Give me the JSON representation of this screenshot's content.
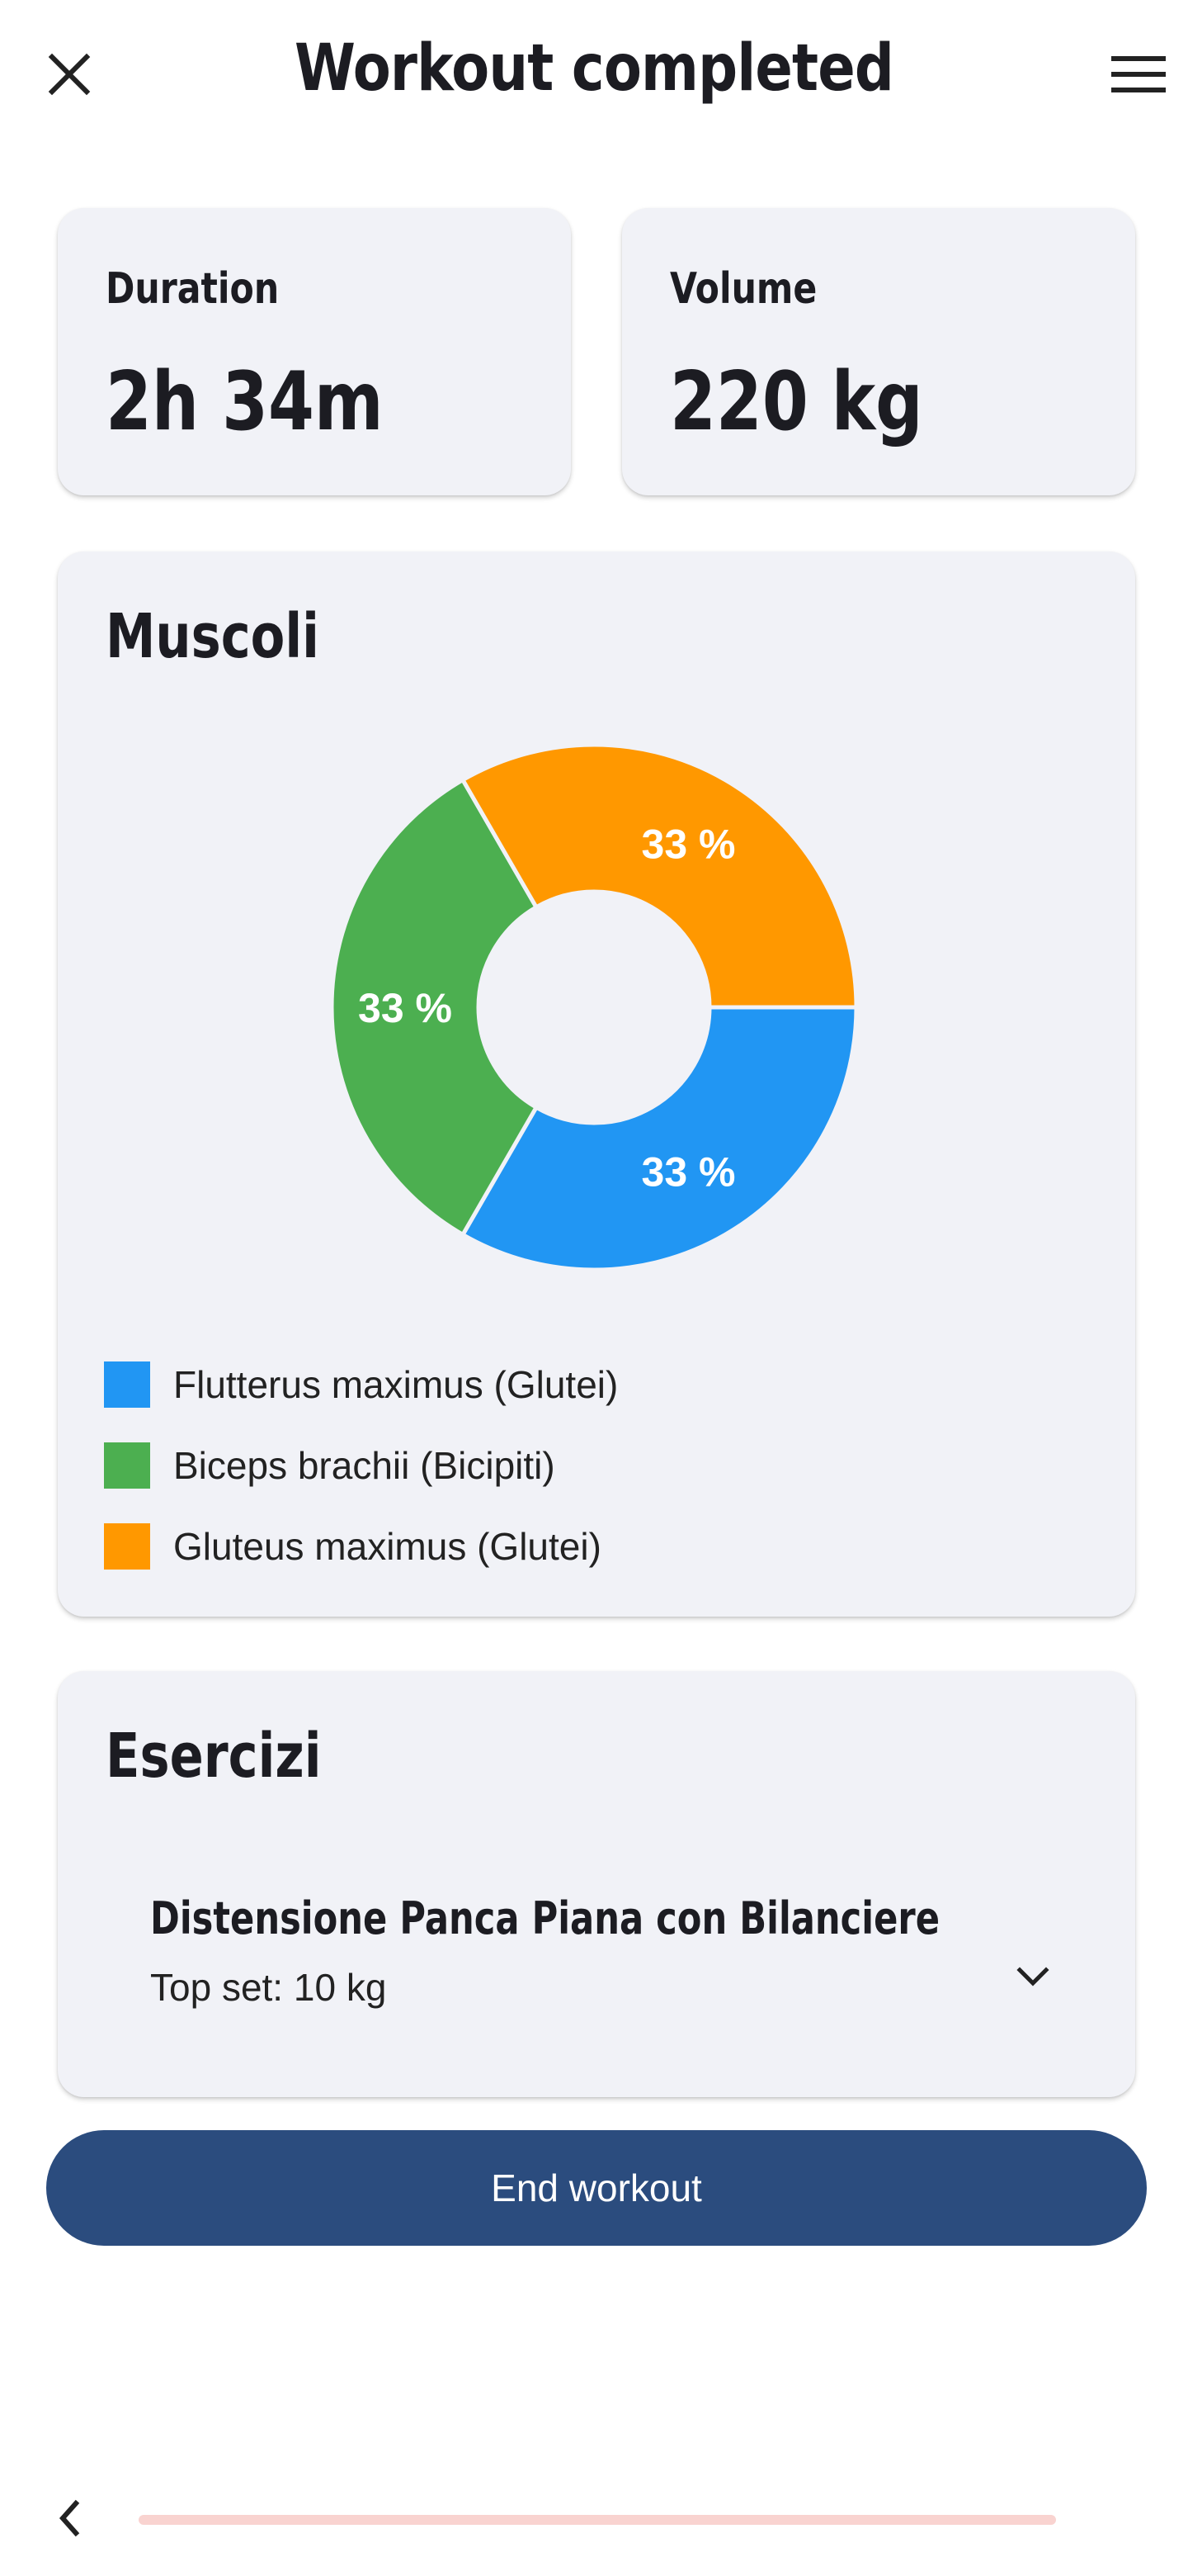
{
  "header": {
    "title": "Workout completed",
    "close_icon": "close-icon",
    "menu_icon": "hamburger-menu-icon"
  },
  "stats": {
    "duration": {
      "label": "Duration",
      "value": "2h 34m"
    },
    "volume": {
      "label": "Volume",
      "value": "220 kg"
    }
  },
  "muscles": {
    "title": "Muscoli",
    "chart_data": {
      "type": "pie",
      "donut": true,
      "title": "Muscoli",
      "slices": [
        {
          "label": "Flutterus maximus (Glutei)",
          "value": 33,
          "display": "33 %",
          "color": "#2196f3"
        },
        {
          "label": "Biceps brachii (Bicipiti)",
          "value": 33,
          "display": "33 %",
          "color": "#4caf50"
        },
        {
          "label": "Gluteus maximus (Glutei)",
          "value": 33,
          "display": "33 %",
          "color": "#ff9800"
        }
      ],
      "legend_placement": "bottom"
    }
  },
  "exercises": {
    "title": "Esercizi",
    "items": [
      {
        "name": "Distensione Panca Piana con Bilanciere",
        "subtitle": "Top set: 10 kg",
        "expand_icon": "chevron-down-icon"
      }
    ]
  },
  "actions": {
    "end_workout_label": "End workout"
  },
  "bottom": {
    "back_icon": "chevron-left-icon",
    "progress": 0,
    "progress_color": "#f9d3d0"
  },
  "colors": {
    "accent": "#2b4c7e",
    "card_bg": "#f1f2f7"
  }
}
